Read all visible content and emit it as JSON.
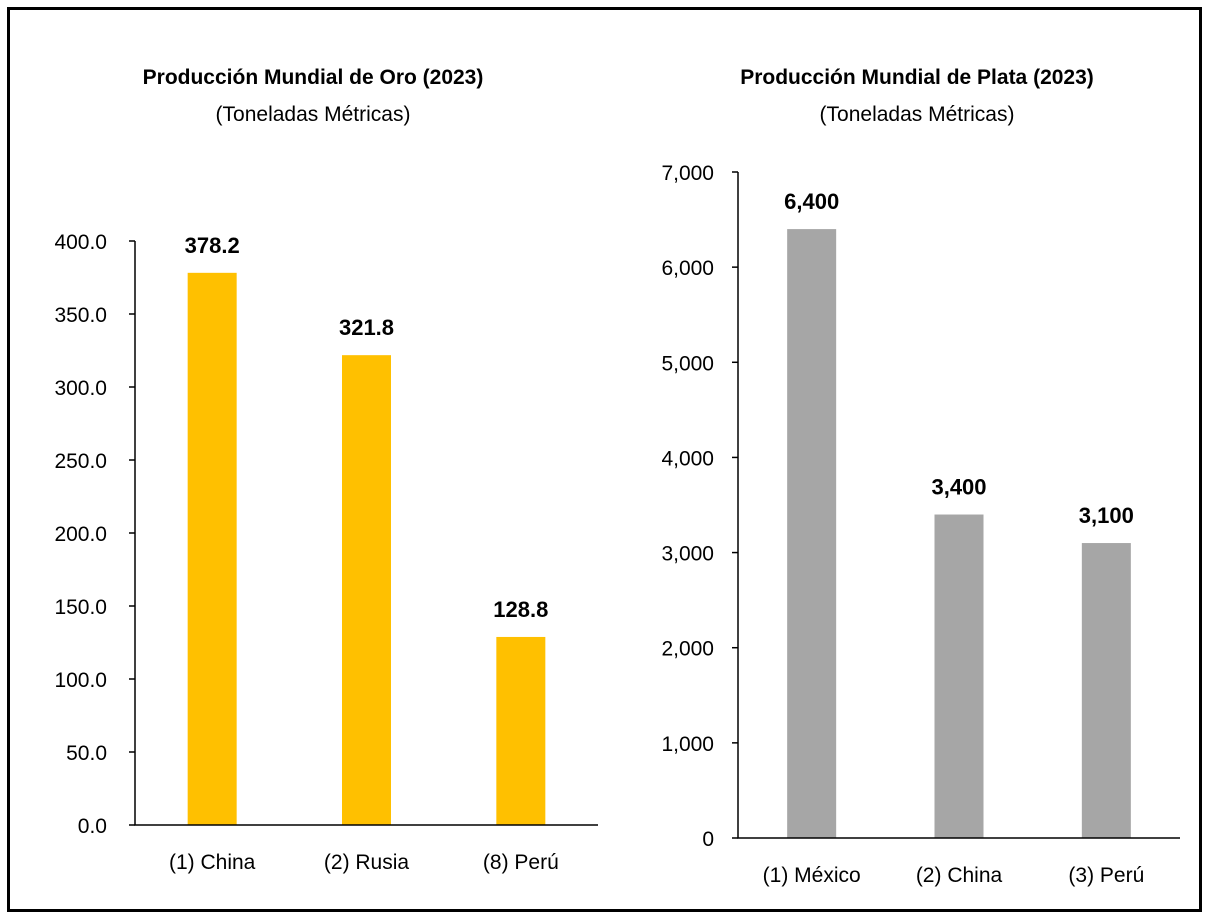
{
  "chart_data": [
    {
      "type": "bar",
      "title": "Producción  Mundial de Oro (2023)",
      "subtitle": "(Toneladas Métricas)",
      "categories": [
        "(1) China",
        "(2) Rusia",
        "(8) Perú"
      ],
      "values": [
        378.2,
        321.8,
        128.8
      ],
      "value_labels": [
        "378.2",
        "321.8",
        "128.8"
      ],
      "ylim": [
        0,
        400
      ],
      "yticks": [
        "0.0",
        "50.0",
        "100.0",
        "150.0",
        "200.0",
        "250.0",
        "300.0",
        "350.0",
        "400.0"
      ],
      "bar_color": "#FFC000",
      "grid": false,
      "legend": "none"
    },
    {
      "type": "bar",
      "title": "Producción  Mundial de Plata (2023)",
      "subtitle": "(Toneladas Métricas)",
      "categories": [
        "(1) México",
        "(2) China",
        "(3) Perú"
      ],
      "values": [
        6400,
        3400,
        3100
      ],
      "value_labels": [
        "6,400",
        "3,400",
        "3,100"
      ],
      "ylim": [
        0,
        7000
      ],
      "yticks": [
        "0",
        "1,000",
        "2,000",
        "3,000",
        "4,000",
        "5,000",
        "6,000",
        "7,000"
      ],
      "bar_color": "#A6A6A6",
      "grid": false,
      "legend": "none"
    }
  ]
}
